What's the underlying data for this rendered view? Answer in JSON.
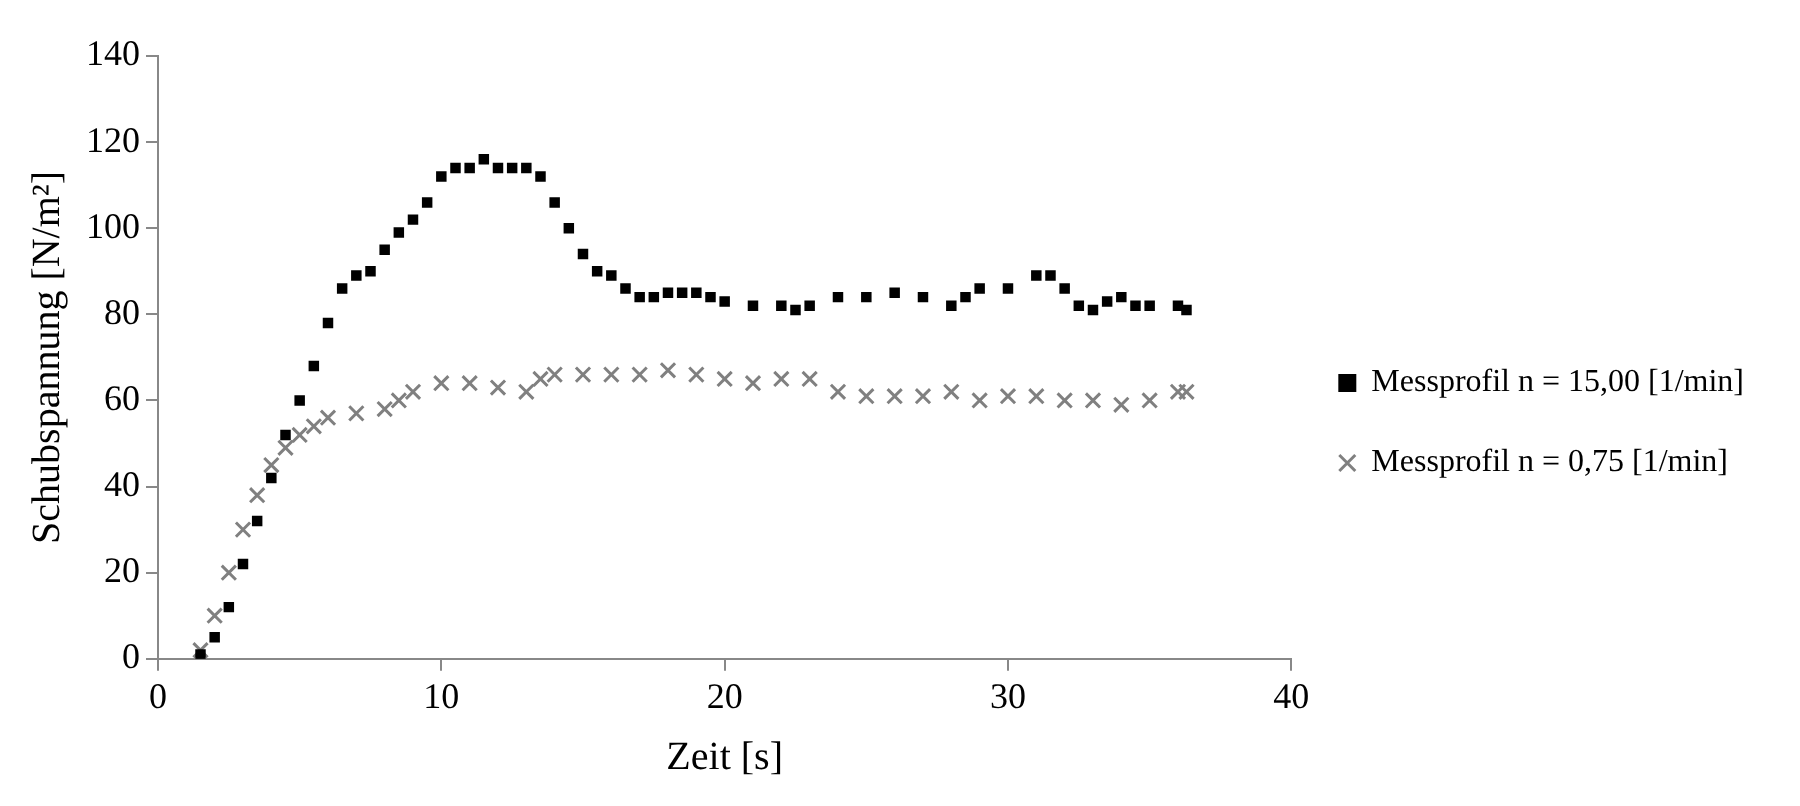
{
  "chart_data": {
    "type": "scatter",
    "xlabel": "Zeit [s]",
    "ylabel": "Schubspannung [N/m²]",
    "xlim": [
      0,
      40
    ],
    "xticks": [
      0,
      10,
      20,
      30,
      40
    ],
    "ylim": [
      0,
      140
    ],
    "yticks": [
      0,
      20,
      40,
      60,
      80,
      100,
      120,
      140
    ],
    "grid": false,
    "legend": "right",
    "series": [
      {
        "name": "Messprofil n = 15,00 [1/min]",
        "color": "#000000",
        "marker": "square",
        "x": [
          1.5,
          2,
          2.5,
          3,
          3.5,
          4,
          4.5,
          5,
          5.5,
          6,
          6.5,
          7,
          7.5,
          8,
          8.5,
          9,
          9.5,
          10,
          10.5,
          11,
          11.5,
          12,
          12.5,
          13,
          13.5,
          14,
          14.5,
          15,
          15.5,
          16,
          16.5,
          17,
          17.5,
          18,
          18.5,
          19,
          19.5,
          20,
          21,
          22,
          22.5,
          23,
          24,
          25,
          26,
          27,
          28,
          28.5,
          29,
          30,
          31,
          31.5,
          32,
          32.5,
          33,
          33.5,
          34,
          34.5,
          35,
          36,
          36.3
        ],
        "values": [
          1,
          5,
          12,
          22,
          32,
          42,
          52,
          60,
          68,
          78,
          86,
          89,
          90,
          95,
          99,
          102,
          106,
          112,
          114,
          114,
          116,
          114,
          114,
          114,
          112,
          106,
          100,
          94,
          90,
          89,
          86,
          84,
          84,
          85,
          85,
          85,
          84,
          83,
          82,
          82,
          81,
          82,
          84,
          84,
          85,
          84,
          82,
          84,
          86,
          86,
          89,
          89,
          86,
          82,
          81,
          83,
          84,
          82,
          82,
          82,
          81
        ]
      },
      {
        "name": "Messprofil n = 0,75 [1/min]",
        "color": "#808080",
        "marker": "cross",
        "x": [
          1.5,
          2,
          2.5,
          3,
          3.5,
          4,
          4.5,
          5,
          5.5,
          6,
          7,
          8,
          8.5,
          9,
          10,
          11,
          12,
          13,
          13.5,
          14,
          15,
          16,
          17,
          18,
          19,
          20,
          21,
          22,
          23,
          24,
          25,
          26,
          27,
          28,
          29,
          30,
          31,
          32,
          33,
          34,
          35,
          36,
          36.3
        ],
        "values": [
          2,
          10,
          20,
          30,
          38,
          45,
          49,
          52,
          54,
          56,
          57,
          58,
          60,
          62,
          64,
          64,
          63,
          62,
          65,
          66,
          66,
          66,
          66,
          67,
          66,
          65,
          64,
          65,
          65,
          62,
          61,
          61,
          61,
          62,
          60,
          61,
          61,
          60,
          60,
          59,
          60,
          62,
          62
        ]
      }
    ]
  }
}
